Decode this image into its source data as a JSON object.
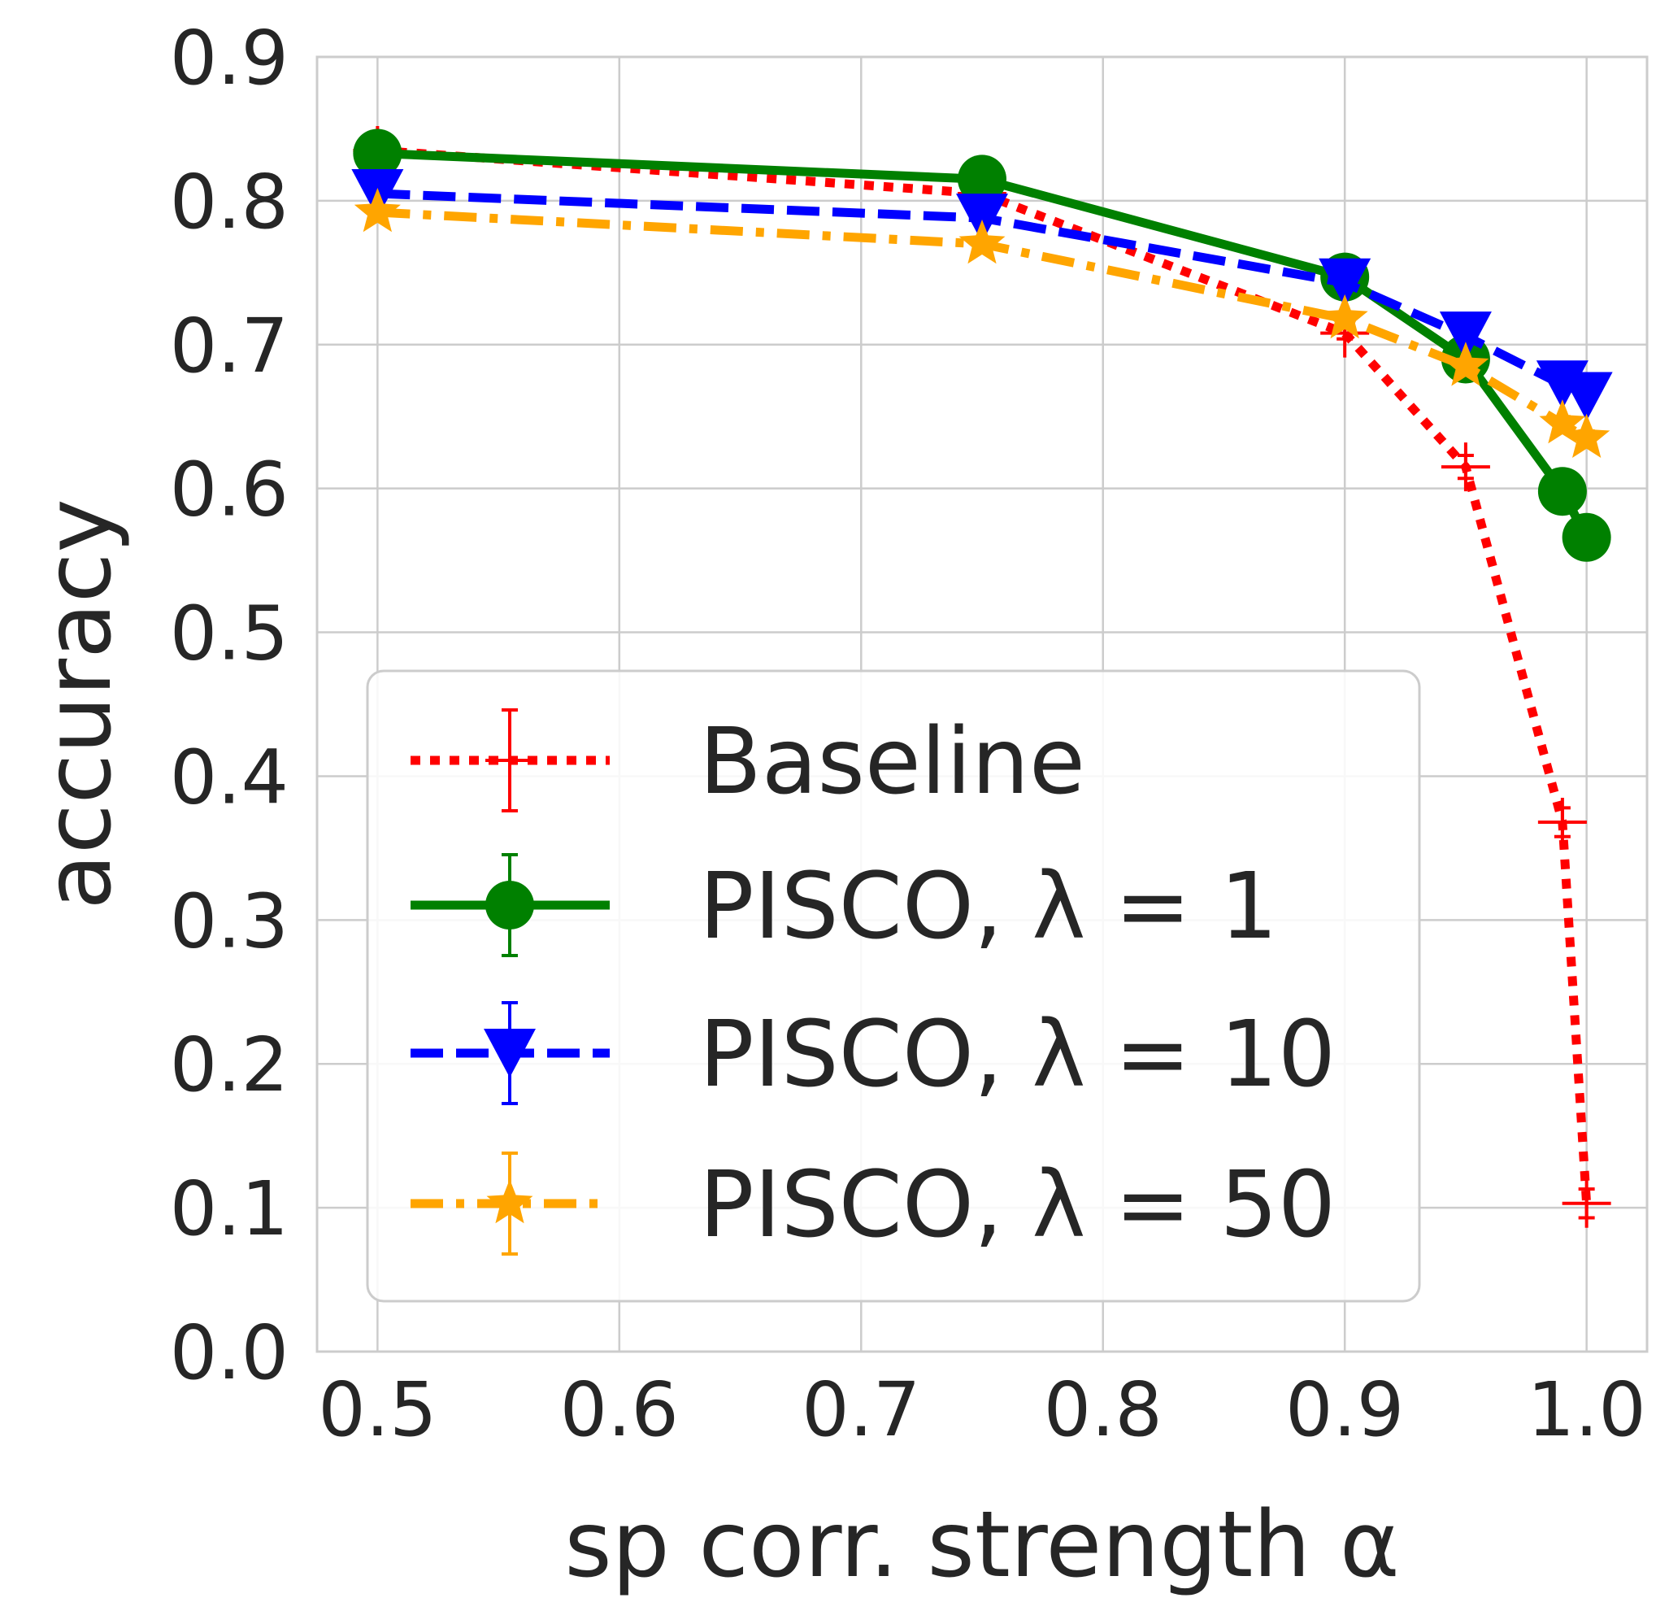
{
  "chart_data": {
    "type": "line",
    "title": "",
    "xlabel": "sp corr. strength α",
    "ylabel": "accuracy",
    "xlim": [
      0.475,
      1.025
    ],
    "ylim": [
      0.0,
      0.9
    ],
    "xticks": [
      "0.5",
      "0.6",
      "0.7",
      "0.8",
      "0.9",
      "1.0"
    ],
    "yticks": [
      "0.0",
      "0.1",
      "0.2",
      "0.3",
      "0.4",
      "0.5",
      "0.6",
      "0.7",
      "0.8",
      "0.9"
    ],
    "grid": true,
    "legend_position": "lower-center-left",
    "series": [
      {
        "name": "Baseline",
        "color": "#ff0000",
        "linestyle": "dotted",
        "marker": "plus",
        "x": [
          0.5,
          0.75,
          0.9,
          0.95,
          0.99,
          1.0
        ],
        "y": [
          0.835,
          0.805,
          0.708,
          0.615,
          0.368,
          0.103
        ],
        "yerr": [
          0.004,
          0.004,
          0.004,
          0.008,
          0.01,
          0.01
        ]
      },
      {
        "name": "PISCO, λ = 1",
        "color": "#008000",
        "linestyle": "solid",
        "marker": "circle",
        "x": [
          0.5,
          0.75,
          0.9,
          0.95,
          0.99,
          1.0
        ],
        "y": [
          0.833,
          0.815,
          0.747,
          0.69,
          0.598,
          0.566
        ],
        "yerr": [
          0.003,
          0.003,
          0.004,
          0.005,
          0.006,
          0.006
        ]
      },
      {
        "name": "PISCO, λ = 10",
        "color": "#0000ff",
        "linestyle": "dashed",
        "marker": "triangle-down",
        "x": [
          0.5,
          0.75,
          0.9,
          0.95,
          0.99,
          1.0
        ],
        "y": [
          0.805,
          0.788,
          0.743,
          0.706,
          0.672,
          0.664
        ],
        "yerr": [
          0.003,
          0.003,
          0.004,
          0.004,
          0.005,
          0.005
        ]
      },
      {
        "name": "PISCO, λ = 50",
        "color": "#ffa500",
        "linestyle": "dashdot",
        "marker": "star",
        "x": [
          0.5,
          0.75,
          0.9,
          0.95,
          0.99,
          1.0
        ],
        "y": [
          0.792,
          0.77,
          0.718,
          0.685,
          0.645,
          0.635
        ],
        "yerr": [
          0.003,
          0.003,
          0.004,
          0.004,
          0.005,
          0.005
        ]
      }
    ]
  }
}
